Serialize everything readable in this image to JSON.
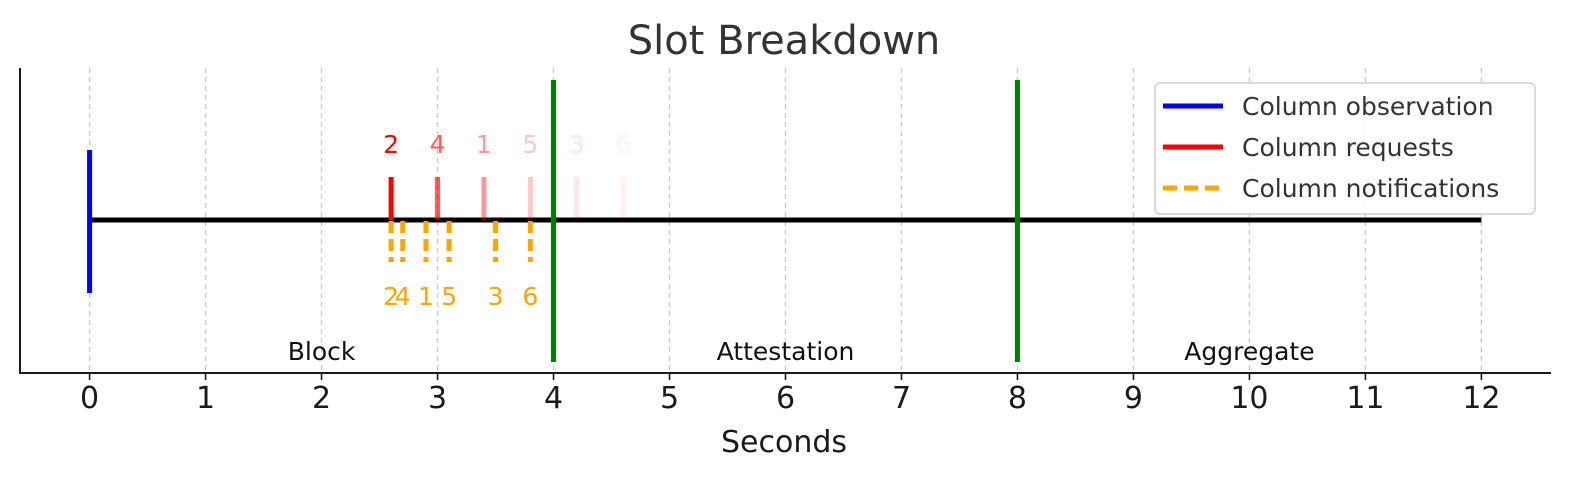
{
  "chart_data": {
    "type": "timeline",
    "title": "Slot Breakdown",
    "xlabel": "Seconds",
    "xlim": [
      -0.6,
      12.6
    ],
    "xticks": [
      0,
      1,
      2,
      3,
      4,
      5,
      6,
      7,
      8,
      9,
      10,
      11,
      12
    ],
    "grid": "vertical dashed",
    "legend_position": "top-right",
    "colors": {
      "timeline": "#000000",
      "observation": "#0000ff",
      "requests": "#ff0000",
      "notifications": "#ffa500",
      "boundary": "#008000",
      "grid": "#c8c8c8"
    },
    "timeline_range": [
      0,
      12
    ],
    "boundaries": [
      4,
      8
    ],
    "phases": [
      {
        "label": "Block",
        "x": 2
      },
      {
        "label": "Attestation",
        "x": 6
      },
      {
        "label": "Aggregate",
        "x": 10
      }
    ],
    "series": [
      {
        "name": "Column observation",
        "style": "solid",
        "color": "#0000ff",
        "points": [
          {
            "x": 0
          }
        ]
      },
      {
        "name": "Column requests",
        "style": "solid",
        "color": "#ff0000",
        "points": [
          {
            "x": 2.6,
            "label": "2",
            "opacity": 1.0
          },
          {
            "x": 3.0,
            "label": "4",
            "opacity": 0.65
          },
          {
            "x": 3.4,
            "label": "1",
            "opacity": 0.4
          },
          {
            "x": 3.8,
            "label": "5",
            "opacity": 0.22
          },
          {
            "x": 4.2,
            "label": "3",
            "opacity": 0.1
          },
          {
            "x": 4.6,
            "label": "6",
            "opacity": 0.05
          }
        ]
      },
      {
        "name": "Column notifications",
        "style": "dashed",
        "color": "#ffa500",
        "points": [
          {
            "x": 2.6,
            "label": "2"
          },
          {
            "x": 2.7,
            "label": "4"
          },
          {
            "x": 2.9,
            "label": "1"
          },
          {
            "x": 3.1,
            "label": "5"
          },
          {
            "x": 3.5,
            "label": "3"
          },
          {
            "x": 3.8,
            "label": "6"
          }
        ]
      }
    ]
  }
}
